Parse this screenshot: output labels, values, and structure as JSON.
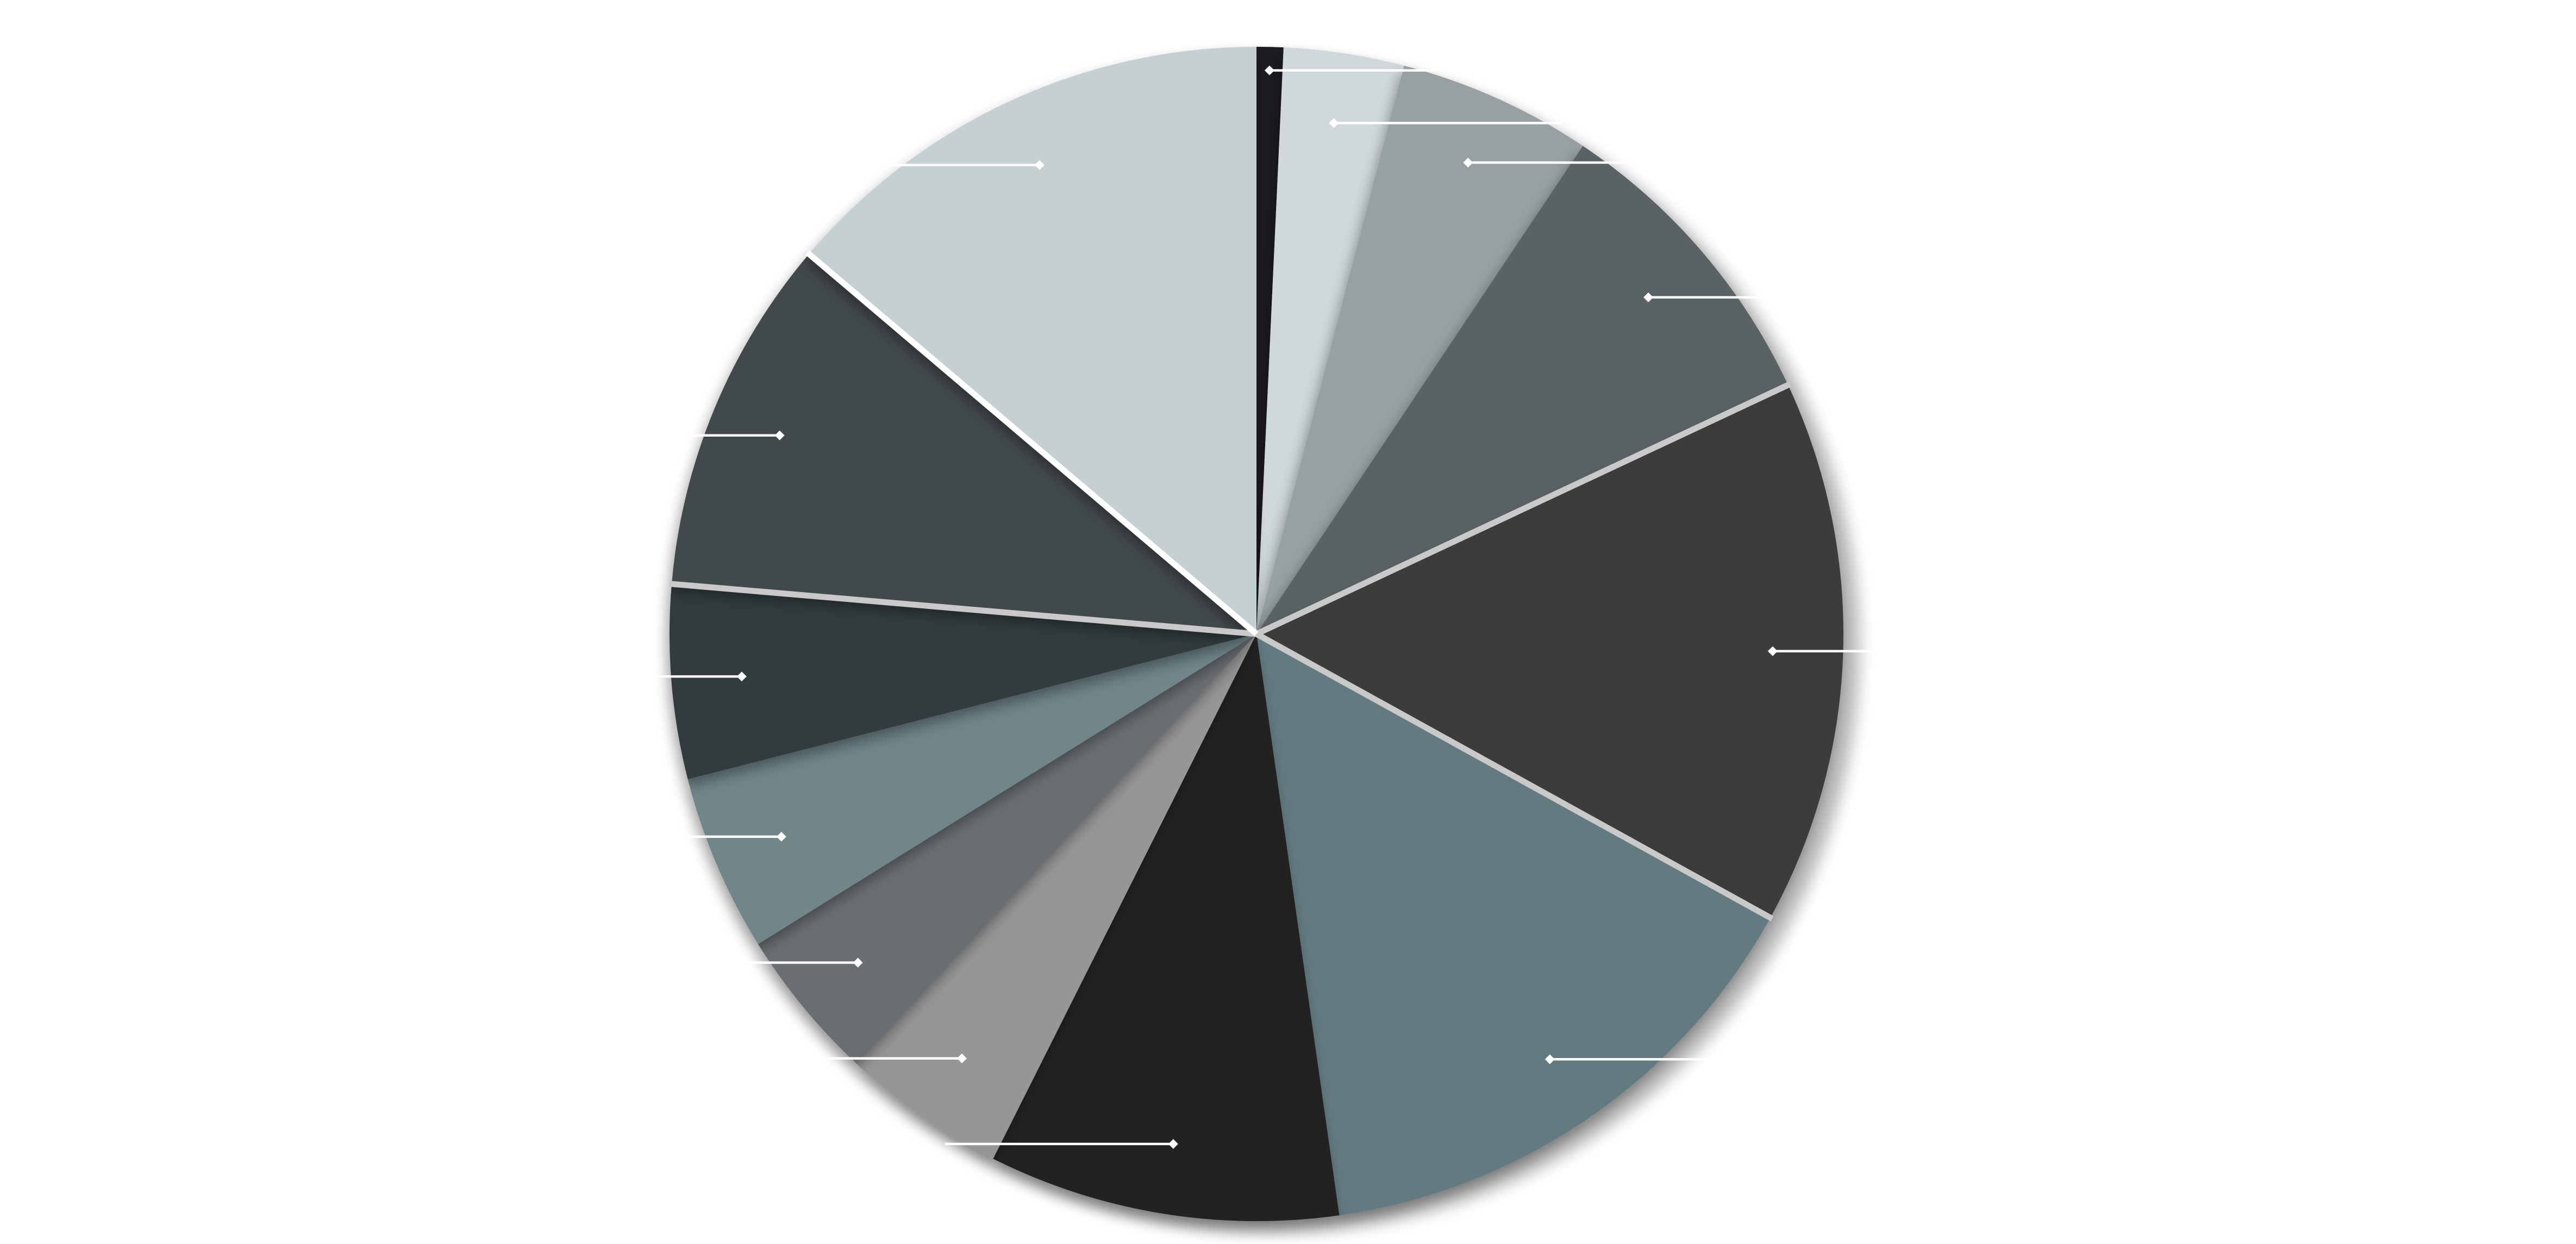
{
  "chart_data": {
    "type": "pie",
    "title": "",
    "start_angle_deg": 0,
    "direction": "clockwise",
    "legend": "none",
    "slices": [
      {
        "value": 0.8,
        "color": "#1b1f22"
      },
      {
        "value": 3.6,
        "color": "#d0d8db"
      },
      {
        "value": 5.8,
        "color": "#98a0a2"
      },
      {
        "value": 9.4,
        "color": "#5a6264"
      },
      {
        "value": 16.3,
        "color": "#3b3c3e"
      },
      {
        "value": 16.0,
        "color": "#627a80"
      },
      {
        "value": 10.5,
        "color": "#222222"
      },
      {
        "value": 4.9,
        "color": "#969696"
      },
      {
        "value": 4.6,
        "color": "#6a6e70"
      },
      {
        "value": 5.3,
        "color": "#708689"
      },
      {
        "value": 5.8,
        "color": "#313a3c"
      },
      {
        "value": 10.7,
        "color": "#42494b"
      },
      {
        "value": 15.0,
        "color": "#c5d0d2"
      }
    ],
    "separators": [
      {
        "after_slice": 3,
        "color": "#c9c9c9"
      },
      {
        "after_slice": 4,
        "color": "#c9c9c9"
      },
      {
        "after_slice": 10,
        "color": "#c9c9c9"
      },
      {
        "after_slice": 11,
        "color": "#ffffff"
      }
    ]
  }
}
